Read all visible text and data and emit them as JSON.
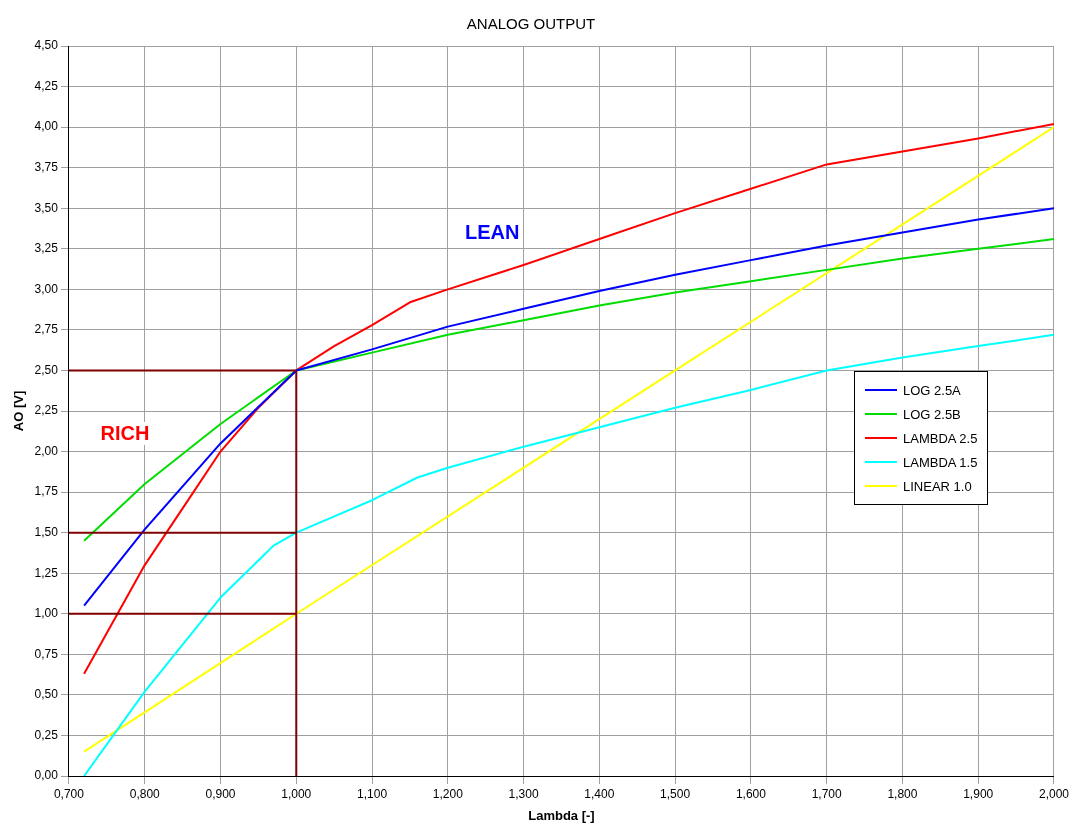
{
  "chart_data": {
    "type": "line",
    "title": "ANALOG OUTPUT",
    "xlabel": "Lambda [-]",
    "ylabel": "AO [V]",
    "xlim": [
      0.7,
      2.0
    ],
    "xticks": [
      {
        "value": 0.7,
        "label": "0,700"
      },
      {
        "value": 0.8,
        "label": "0,800"
      },
      {
        "value": 0.9,
        "label": "0,900"
      },
      {
        "value": 1.0,
        "label": "1,000"
      },
      {
        "value": 1.1,
        "label": "1,100"
      },
      {
        "value": 1.2,
        "label": "1,200"
      },
      {
        "value": 1.3,
        "label": "1,300"
      },
      {
        "value": 1.4,
        "label": "1,400"
      },
      {
        "value": 1.5,
        "label": "1,500"
      },
      {
        "value": 1.6,
        "label": "1,600"
      },
      {
        "value": 1.7,
        "label": "1,700"
      },
      {
        "value": 1.8,
        "label": "1,800"
      },
      {
        "value": 1.9,
        "label": "1,900"
      },
      {
        "value": 2.0,
        "label": "2,000"
      }
    ],
    "ylim": [
      0,
      4.5
    ],
    "yticks": [
      {
        "value": 0,
        "label": "0,00"
      },
      {
        "value": 0.25,
        "label": "0,25"
      },
      {
        "value": 0.5,
        "label": "0,50"
      },
      {
        "value": 0.75,
        "label": "0,75"
      },
      {
        "value": 1.0,
        "label": "1,00"
      },
      {
        "value": 1.25,
        "label": "1,25"
      },
      {
        "value": 1.5,
        "label": "1,50"
      },
      {
        "value": 1.75,
        "label": "1,75"
      },
      {
        "value": 2.0,
        "label": "2,00"
      },
      {
        "value": 2.25,
        "label": "2,25"
      },
      {
        "value": 2.5,
        "label": "2,50"
      },
      {
        "value": 2.75,
        "label": "2,75"
      },
      {
        "value": 3.0,
        "label": "3,00"
      },
      {
        "value": 3.25,
        "label": "3,25"
      },
      {
        "value": 3.5,
        "label": "3,50"
      },
      {
        "value": 3.75,
        "label": "3,75"
      },
      {
        "value": 4.0,
        "label": "4,00"
      },
      {
        "value": 4.25,
        "label": "4,25"
      },
      {
        "value": 4.5,
        "label": "4,50"
      }
    ],
    "grid": true,
    "legend": "right",
    "marker": "none",
    "line_style": "solid",
    "annotations": [
      "LEAN",
      "RICH"
    ],
    "series": [
      {
        "type": "line",
        "color": "#800000",
        "x": [
          0.7,
          1.0
        ],
        "values": [
          1.0,
          1.0
        ]
      },
      {
        "type": "line",
        "color": "#800000",
        "x": [
          0.7,
          1.0
        ],
        "values": [
          1.5,
          1.5
        ]
      },
      {
        "type": "line",
        "color": "#800000",
        "x": [
          0.7,
          1.0
        ],
        "values": [
          2.5,
          2.5
        ]
      },
      {
        "type": "line",
        "color": "#800000",
        "x": [
          1.0,
          1.0
        ],
        "values": [
          0,
          2.5
        ]
      },
      {
        "name": "LOG 2.5A",
        "color": "#0000ff",
        "x": [
          0.72,
          0.8,
          0.9,
          1.0,
          1.1,
          1.2,
          1.3,
          1.4,
          1.5,
          1.6,
          1.7,
          1.8,
          1.9,
          2.0
        ],
        "values": [
          1.05,
          1.52,
          2.05,
          2.5,
          2.63,
          2.77,
          2.88,
          2.99,
          3.09,
          3.18,
          3.27,
          3.35,
          3.43,
          3.5
        ]
      },
      {
        "name": "LOG 2.5B",
        "color": "#00dd00",
        "x": [
          0.72,
          0.8,
          0.9,
          1.0,
          1.1,
          1.2,
          1.3,
          1.4,
          1.5,
          1.6,
          1.7,
          1.8,
          1.9,
          2.0
        ],
        "values": [
          1.45,
          1.8,
          2.17,
          2.5,
          2.61,
          2.72,
          2.81,
          2.9,
          2.98,
          3.05,
          3.12,
          3.19,
          3.25,
          3.31
        ]
      },
      {
        "name": "LAMBDA 2.5",
        "color": "#ff0000",
        "x": [
          0.72,
          0.8,
          0.85,
          0.9,
          0.95,
          1.0,
          1.05,
          1.1,
          1.15,
          1.2,
          1.3,
          1.4,
          1.5,
          1.6,
          1.7,
          1.8,
          1.9,
          2.0
        ],
        "values": [
          0.63,
          1.3,
          1.65,
          2.0,
          2.27,
          2.5,
          2.65,
          2.78,
          2.92,
          3.0,
          3.15,
          3.31,
          3.47,
          3.62,
          3.77,
          3.85,
          3.93,
          4.02
        ]
      },
      {
        "name": "LAMBDA 1.5",
        "color": "#00ffff",
        "x": [
          0.72,
          0.8,
          0.9,
          0.97,
          1.0,
          1.1,
          1.16,
          1.2,
          1.3,
          1.4,
          1.5,
          1.6,
          1.7,
          1.8,
          1.9,
          2.0
        ],
        "values": [
          0.0,
          0.52,
          1.1,
          1.42,
          1.5,
          1.7,
          1.84,
          1.9,
          2.03,
          2.15,
          2.27,
          2.38,
          2.5,
          2.58,
          2.65,
          2.72
        ]
      },
      {
        "name": "LINEAR 1.0",
        "color": "#ffff00",
        "x": [
          0.72,
          1.0,
          1.5,
          2.0
        ],
        "values": [
          0.15,
          1.0,
          2.5,
          4.0
        ]
      }
    ]
  }
}
